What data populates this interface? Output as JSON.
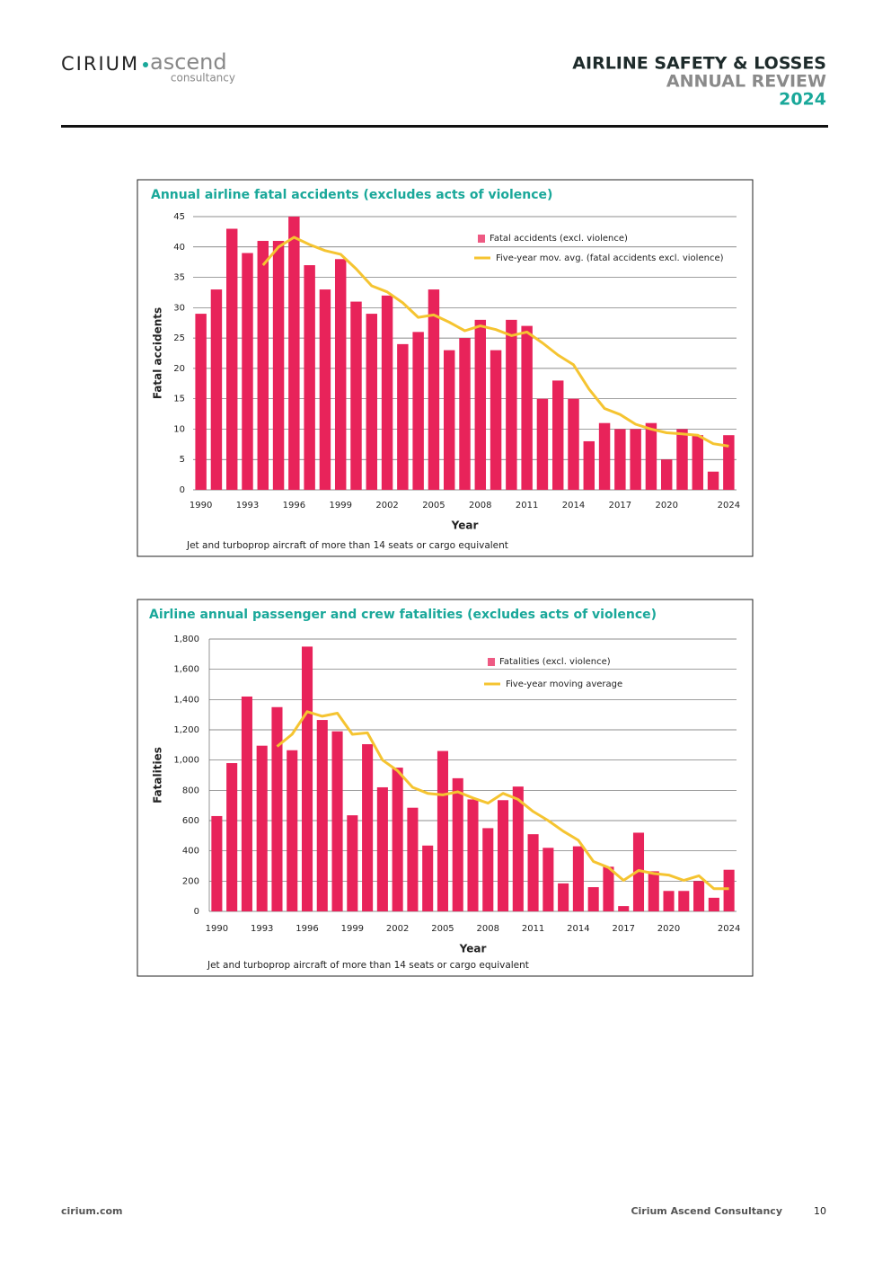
{
  "header": {
    "logo_main": "CIRIUM",
    "logo_sub": "ascend",
    "logo_tag": "consultancy",
    "title_line1": "AIRLINE SAFETY & LOSSES",
    "title_line2": "ANNUAL REVIEW",
    "title_line3": "2024"
  },
  "chart_data": [
    {
      "type": "bar",
      "title": "Annual airline fatal accidents (excludes acts of violence)",
      "y_label": "Fatal accidents",
      "x_label": "Year",
      "note": "Jet and turboprop aircraft of more than 14 seats or cargo equivalent",
      "x": [
        1990,
        1991,
        1992,
        1993,
        1994,
        1995,
        1996,
        1997,
        1998,
        1999,
        2000,
        2001,
        2002,
        2003,
        2004,
        2005,
        2006,
        2007,
        2008,
        2009,
        2010,
        2011,
        2012,
        2013,
        2014,
        2015,
        2016,
        2017,
        2018,
        2019,
        2020,
        2021,
        2022,
        2023,
        2024
      ],
      "series": [
        {
          "name": "Fatal accidents (excl. violence)",
          "type": "bar",
          "color": "#e8235a",
          "values": [
            29,
            33,
            43,
            39,
            41,
            41,
            45,
            37,
            33,
            38,
            31,
            29,
            32,
            24,
            26,
            33,
            23,
            25,
            28,
            23,
            28,
            27,
            15,
            18,
            15,
            8,
            11,
            10,
            10,
            11,
            5,
            10,
            9,
            3,
            9
          ]
        },
        {
          "name": "Five-year mov. avg. (fatal accidents excl. violence)",
          "type": "line",
          "color": "#f5c431",
          "values": [
            null,
            null,
            null,
            null,
            37,
            40,
            41.6,
            40.4,
            39.4,
            38.8,
            36.4,
            33.6,
            32.6,
            30.8,
            28.4,
            28.8,
            27.6,
            26.2,
            27,
            26.4,
            25.4,
            26,
            24.2,
            22.2,
            20.6,
            16.6,
            13.4,
            12.4,
            10.8,
            10,
            9.4,
            9.2,
            9,
            7.6,
            7.2
          ]
        }
      ],
      "xlim": [
        1989.5,
        2024.5
      ],
      "xticks": [
        1990,
        1993,
        1996,
        1999,
        2002,
        2005,
        2008,
        2011,
        2014,
        2017,
        2020,
        2024
      ],
      "ylim": [
        0,
        45
      ],
      "yticks": [
        0,
        5,
        10,
        15,
        20,
        25,
        30,
        35,
        40,
        45
      ],
      "grid": true,
      "legend": "upper right"
    },
    {
      "type": "bar",
      "title": "Airline annual passenger and crew fatalities (excludes acts of violence)",
      "y_label": "Fatalities",
      "x_label": "Year",
      "note": "Jet and turboprop aircraft of more than 14 seats or cargo equivalent",
      "x": [
        1990,
        1991,
        1992,
        1993,
        1994,
        1995,
        1996,
        1997,
        1998,
        1999,
        2000,
        2001,
        2002,
        2003,
        2004,
        2005,
        2006,
        2007,
        2008,
        2009,
        2010,
        2011,
        2012,
        2013,
        2014,
        2015,
        2016,
        2017,
        2018,
        2019,
        2020,
        2021,
        2022,
        2023,
        2024
      ],
      "series": [
        {
          "name": "Fatalities (excl. violence)",
          "type": "bar",
          "color": "#e8235a",
          "values": [
            630,
            980,
            1420,
            1095,
            1350,
            1065,
            1750,
            1265,
            1190,
            635,
            1105,
            820,
            950,
            685,
            435,
            1060,
            880,
            740,
            550,
            735,
            825,
            510,
            420,
            185,
            430,
            160,
            295,
            35,
            520,
            265,
            135,
            135,
            200,
            90,
            275
          ]
        },
        {
          "name": "Five-year moving average",
          "type": "line",
          "color": "#f5c431",
          "values": [
            null,
            null,
            null,
            null,
            1090,
            1170,
            1320,
            1290,
            1310,
            1170,
            1180,
            1000,
            930,
            820,
            780,
            770,
            790,
            750,
            715,
            780,
            740,
            660,
            600,
            530,
            470,
            330,
            290,
            205,
            270,
            250,
            240,
            205,
            235,
            150,
            150
          ]
        }
      ],
      "xlim": [
        1989.5,
        2024.5
      ],
      "xticks": [
        1990,
        1993,
        1996,
        1999,
        2002,
        2005,
        2008,
        2011,
        2014,
        2017,
        2020,
        2024
      ],
      "ylim": [
        0,
        1800
      ],
      "yticks": [
        0,
        {
          "value": 200,
          "label": "200"
        },
        {
          "value": 400,
          "label": "400"
        },
        {
          "value": 600,
          "label": "600"
        },
        {
          "value": 800,
          "label": "800"
        },
        {
          "value": 1000,
          "label": "1,000"
        },
        {
          "value": 1200,
          "label": "1,200"
        },
        {
          "value": 1400,
          "label": "1,400"
        },
        {
          "value": 1600,
          "label": "1,600"
        },
        {
          "value": 1800,
          "label": "1,800"
        }
      ],
      "grid": true,
      "legend": "upper right"
    }
  ],
  "footer": {
    "site": "cirium.com",
    "company": "Cirium Ascend Consultancy",
    "page": "10"
  }
}
